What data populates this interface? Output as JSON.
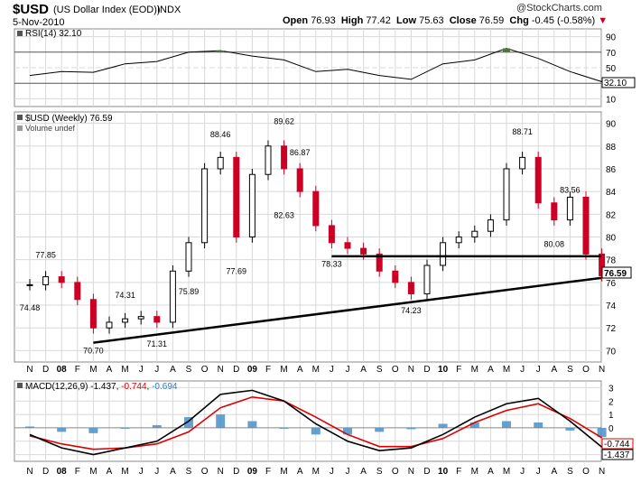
{
  "header": {
    "symbol": "$USD",
    "name": "(US Dollar Index (EOD))",
    "exchange": "INDX",
    "copyright": "@StockCharts.com",
    "date": "5-Nov-2010",
    "open_label": "Open",
    "open": "76.93",
    "high_label": "High",
    "high": "77.42",
    "low_label": "Low",
    "low": "75.63",
    "close_label": "Close",
    "close": "76.59",
    "chg_label": "Chg",
    "chg": "-0.45 (-0.58%)"
  },
  "colors": {
    "up": "#000000",
    "down": "#cc0022",
    "rsi_fill": "#4a7a3a",
    "macd_hist": "#4a90c8",
    "macd_signal": "#dd0000",
    "grid": "#d8d8d8",
    "trendline": "#000000"
  },
  "rsi_panel": {
    "legend": "RSI(14) 32.10",
    "current": "32.10",
    "ticks": [
      "90",
      "70",
      "50",
      "30",
      "10"
    ]
  },
  "price_panel": {
    "legend": "$USD (Weekly) 76.59",
    "volume_legend": "Volume undef",
    "current": "76.59",
    "ticks": [
      "90",
      "88",
      "86",
      "84",
      "82",
      "80",
      "78",
      "76",
      "74",
      "72",
      "70"
    ]
  },
  "macd_panel": {
    "legend_prefix": "MACD(12,26,9)",
    "macd_value": "-1.437",
    "signal_value": "-0.744",
    "hist_value": "-0.694",
    "ticks": [
      "3",
      "2",
      "1",
      "0",
      "-1",
      "-2"
    ],
    "current_signal": "-0.744",
    "current_macd": "-1.437"
  },
  "x_axis_labels": [
    "N",
    "D",
    "08",
    "F",
    "M",
    "A",
    "M",
    "J",
    "J",
    "A",
    "S",
    "O",
    "N",
    "D",
    "09",
    "F",
    "M",
    "A",
    "M",
    "J",
    "J",
    "A",
    "S",
    "O",
    "N",
    "D",
    "10",
    "F",
    "M",
    "A",
    "M",
    "J",
    "J",
    "A",
    "S",
    "O",
    "N"
  ],
  "chart_data": [
    {
      "type": "line",
      "title": "RSI(14)",
      "ylim": [
        0,
        100
      ],
      "x": [
        "2007-11",
        "2008-01",
        "2008-03",
        "2008-05",
        "2008-07",
        "2008-09",
        "2008-11",
        "2009-01",
        "2009-03",
        "2009-05",
        "2009-07",
        "2009-09",
        "2009-11",
        "2010-01",
        "2010-03",
        "2010-05",
        "2010-07",
        "2010-09",
        "2010-11"
      ],
      "values": [
        40,
        45,
        44,
        55,
        58,
        70,
        72,
        65,
        60,
        45,
        48,
        40,
        35,
        55,
        60,
        75,
        62,
        45,
        32
      ]
    },
    {
      "type": "candlestick",
      "title": "$USD (Weekly)",
      "ylim": [
        69,
        91
      ],
      "annotations": [
        {
          "label": "74.48",
          "value": 74.48,
          "date": "2007-11"
        },
        {
          "label": "77.85",
          "value": 77.85,
          "date": "2007-12"
        },
        {
          "label": "70.70",
          "value": 70.7,
          "date": "2008-03"
        },
        {
          "label": "74.31",
          "value": 74.31,
          "date": "2008-05"
        },
        {
          "label": "71.31",
          "value": 71.31,
          "date": "2008-07"
        },
        {
          "label": "75.89",
          "value": 75.89,
          "date": "2008-09"
        },
        {
          "label": "88.46",
          "value": 88.46,
          "date": "2008-11"
        },
        {
          "label": "77.69",
          "value": 77.69,
          "date": "2008-12"
        },
        {
          "label": "89.62",
          "value": 89.62,
          "date": "2009-03"
        },
        {
          "label": "86.87",
          "value": 86.87,
          "date": "2009-04"
        },
        {
          "label": "82.63",
          "value": 82.63,
          "date": "2009-03"
        },
        {
          "label": "78.33",
          "value": 78.33,
          "date": "2009-06"
        },
        {
          "label": "74.23",
          "value": 74.23,
          "date": "2009-11"
        },
        {
          "label": "88.71",
          "value": 88.71,
          "date": "2010-06"
        },
        {
          "label": "80.08",
          "value": 80.08,
          "date": "2010-08"
        },
        {
          "label": "83.56",
          "value": 83.56,
          "date": "2010-09"
        }
      ],
      "series": [
        {
          "name": "close",
          "x": [
            "2007-11",
            "2007-12",
            "2008-01",
            "2008-02",
            "2008-03",
            "2008-04",
            "2008-05",
            "2008-06",
            "2008-07",
            "2008-08",
            "2008-09",
            "2008-10",
            "2008-11",
            "2008-12",
            "2009-01",
            "2009-02",
            "2009-03",
            "2009-04",
            "2009-05",
            "2009-06",
            "2009-07",
            "2009-08",
            "2009-09",
            "2009-10",
            "2009-11",
            "2009-12",
            "2010-01",
            "2010-02",
            "2010-03",
            "2010-04",
            "2010-05",
            "2010-06",
            "2010-07",
            "2010-08",
            "2010-09",
            "2010-10",
            "2010-11"
          ],
          "values": [
            75.8,
            76.5,
            76.0,
            74.5,
            72.0,
            72.5,
            72.8,
            73.0,
            72.5,
            77.0,
            79.5,
            86.0,
            87.0,
            80.0,
            85.5,
            88.0,
            86.0,
            84.0,
            81.0,
            79.5,
            79.0,
            78.5,
            77.0,
            76.0,
            75.0,
            77.5,
            79.5,
            80.0,
            80.5,
            81.5,
            86.0,
            87.0,
            83.0,
            81.5,
            83.5,
            78.5,
            76.59
          ]
        }
      ]
    },
    {
      "type": "line",
      "title": "MACD(12,26,9)",
      "ylim": [
        -2.5,
        3.5
      ],
      "series": [
        {
          "name": "MACD",
          "x": [
            "2007-11",
            "2008-01",
            "2008-03",
            "2008-05",
            "2008-07",
            "2008-09",
            "2008-11",
            "2009-01",
            "2009-03",
            "2009-05",
            "2009-07",
            "2009-09",
            "2009-11",
            "2010-01",
            "2010-03",
            "2010-05",
            "2010-07",
            "2010-09",
            "2010-11"
          ],
          "values": [
            -0.5,
            -1.5,
            -2.0,
            -1.5,
            -1.0,
            0.5,
            2.5,
            2.8,
            2.0,
            0.3,
            -1.0,
            -1.7,
            -1.5,
            -0.5,
            0.8,
            1.8,
            2.2,
            0.5,
            -1.437
          ]
        },
        {
          "name": "Signal",
          "x": [
            "2007-11",
            "2008-01",
            "2008-03",
            "2008-05",
            "2008-07",
            "2008-09",
            "2008-11",
            "2009-01",
            "2009-03",
            "2009-05",
            "2009-07",
            "2009-09",
            "2009-11",
            "2010-01",
            "2010-03",
            "2010-05",
            "2010-07",
            "2010-09",
            "2010-11"
          ],
          "values": [
            -0.6,
            -1.2,
            -1.6,
            -1.5,
            -1.2,
            -0.3,
            1.5,
            2.3,
            2.0,
            0.8,
            -0.5,
            -1.4,
            -1.4,
            -0.8,
            0.4,
            1.3,
            1.8,
            0.7,
            -0.744
          ]
        }
      ]
    }
  ]
}
